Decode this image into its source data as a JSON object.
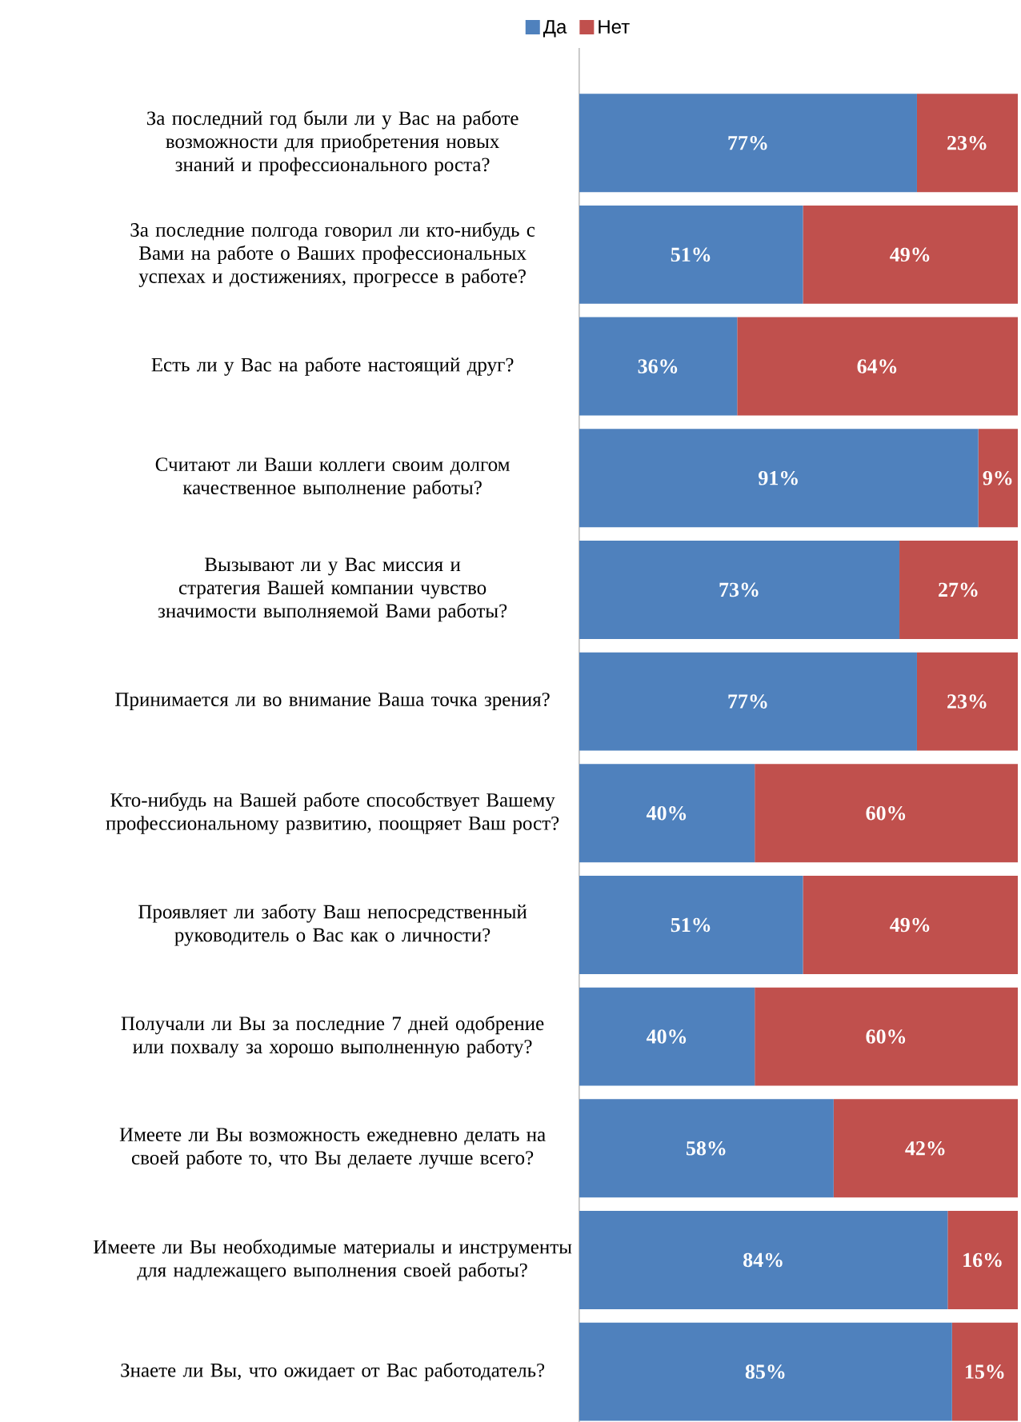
{
  "chart_data": {
    "type": "bar",
    "orientation": "horizontal",
    "stacked": true,
    "legend": "top",
    "tick_labels": "y",
    "xlim": [
      0,
      100
    ],
    "categories": [
      "За последний год были ли у Вас на работе возможности для приобретения новых знаний и профессионального роста?",
      "За последние полгода говорил ли кто-нибудь с Вами на работе о Ваших профессиональных успехах и достижениях, прогрессе в работе?",
      "Есть ли у Вас на работе настоящий друг?",
      "Считают ли Ваши коллеги своим долгом качественное выполнение работы?",
      "Вызывают ли у Вас миссия и стратегия Вашей компании чувство значимости выполняемой Вами работы?",
      "Принимается ли во внимание Ваша точка зрения?",
      "Кто-нибудь на Вашей работе способствует Вашему профессиональному развитию, поощряет Ваш рост?",
      "Проявляет ли заботу Ваш непосредственный руководитель о Вас как о личности?",
      "Получали ли Вы за последние 7 дней одобрение или похвалу за хорошо выполненную работу?",
      "Имеете ли Вы возможность ежедневно делать на своей работе то, что Вы делаете лучше всего?",
      "Имеете ли Вы необходимые материалы и инструменты для надлежащего выполнения своей работы?",
      "Знаете ли Вы, что ожидает от Вас работодатель?"
    ],
    "series": [
      {
        "name": "Да",
        "color": "#4f81bd",
        "values": [
          77,
          51,
          36,
          91,
          73,
          77,
          40,
          51,
          40,
          58,
          84,
          85
        ],
        "value_labels": [
          "77%",
          "51%",
          "36%",
          "91%",
          "73%",
          "77%",
          "40%",
          "51%",
          "40%",
          "58%",
          "84%",
          "85%"
        ]
      },
      {
        "name": "Нет",
        "color": "#c0504d",
        "values": [
          23,
          49,
          64,
          9,
          27,
          23,
          60,
          49,
          60,
          42,
          16,
          15
        ],
        "value_labels": [
          "23%",
          "49%",
          "64%",
          "9%",
          "27%",
          "23%",
          "60%",
          "49%",
          "60%",
          "42%",
          "16%",
          "15%"
        ]
      }
    ]
  }
}
